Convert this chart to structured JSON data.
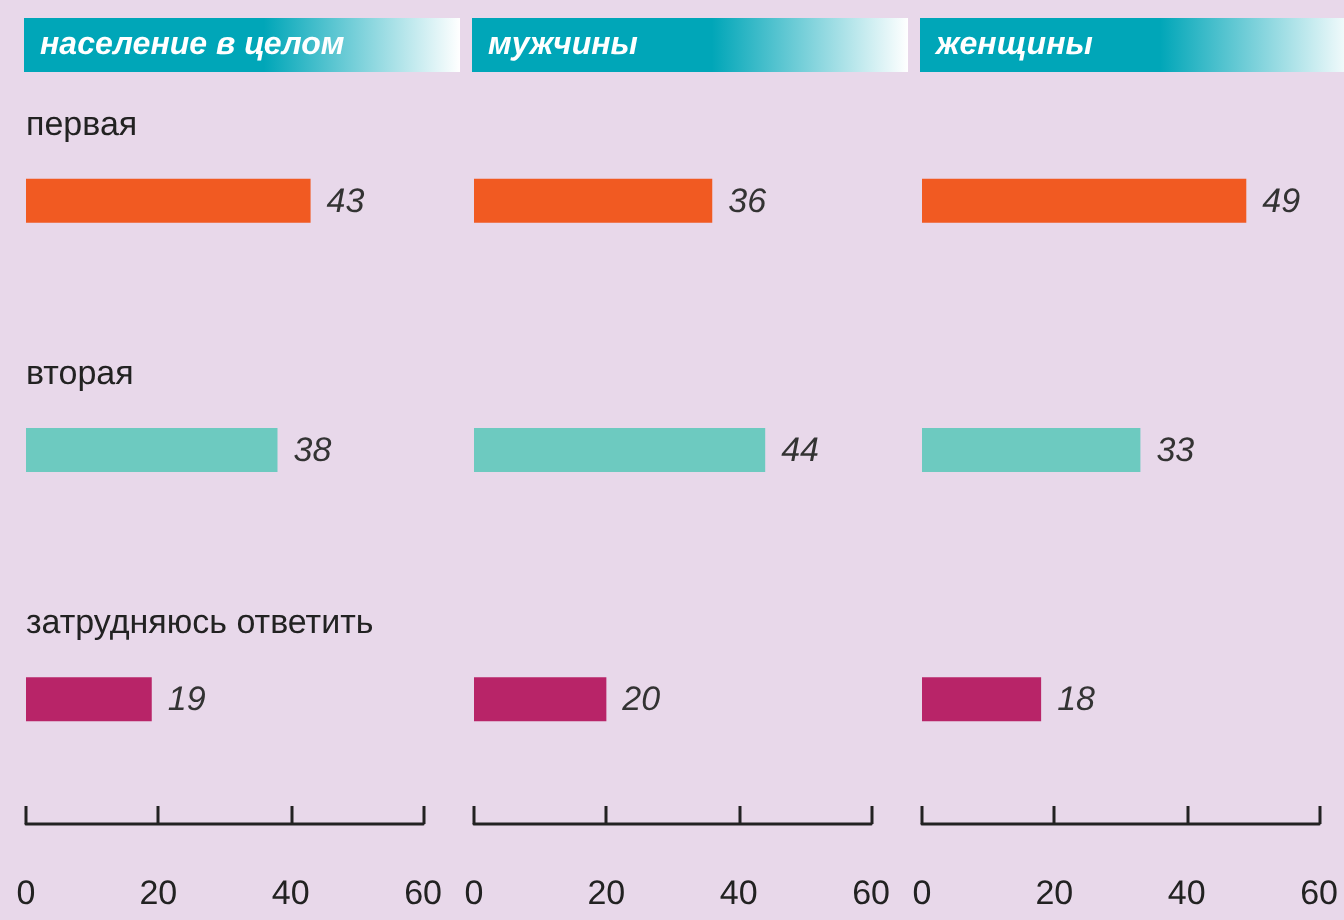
{
  "chart_data": [
    {
      "type": "bar",
      "orientation": "horizontal",
      "title": "население в целом",
      "categories": [
        "первая",
        "вторая",
        "затрудняюсь ответить"
      ],
      "values": [
        43,
        38,
        19
      ],
      "colors": [
        "#f15a22",
        "#6dcac0",
        "#b82468"
      ],
      "xlim": [
        0,
        60
      ],
      "xticks": [
        0,
        20,
        40,
        60
      ],
      "data_labels": true,
      "grid": false
    },
    {
      "type": "bar",
      "orientation": "horizontal",
      "title": "мужчины",
      "categories": [
        null,
        null,
        null
      ],
      "values": [
        36,
        44,
        20
      ],
      "colors": [
        "#f15a22",
        "#6dcac0",
        "#b82468"
      ],
      "xlim": [
        0,
        60
      ],
      "xticks": [
        0,
        20,
        40,
        60
      ],
      "data_labels": true,
      "grid": false
    },
    {
      "type": "bar",
      "orientation": "horizontal",
      "title": "женщины",
      "categories": [
        null,
        null,
        null
      ],
      "values": [
        49,
        33,
        18
      ],
      "colors": [
        "#f15a22",
        "#6dcac0",
        "#b82468"
      ],
      "xlim": [
        0,
        60
      ],
      "xticks": [
        0,
        20,
        40,
        60
      ],
      "data_labels": true,
      "grid": false
    }
  ]
}
